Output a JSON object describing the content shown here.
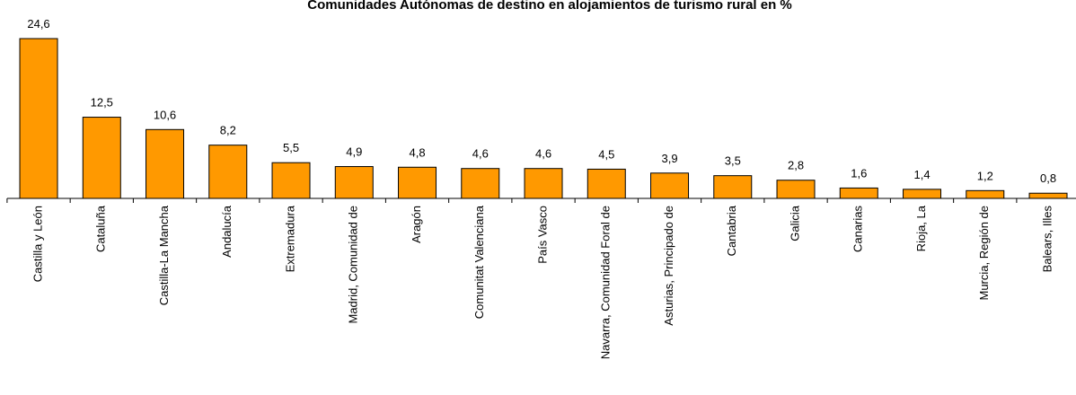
{
  "chart_data": {
    "type": "bar",
    "title": "Comunidades Autónomas de destino en alojamientos de turismo rural en %",
    "categories": [
      "Castilla y León",
      "Cataluña",
      "Castilla-La Mancha",
      "Andalucía",
      "Extremadura",
      "Madrid, Comunidad de",
      "Aragón",
      "Comunitat Valenciana",
      "País Vasco",
      "Navarra, Comunidad Foral de",
      "Asturias, Principado de",
      "Cantabria",
      "Galicia",
      "Canarias",
      "Rioja, La",
      "Murcia, Región de",
      "Balears, Illes"
    ],
    "values": [
      24.6,
      12.5,
      10.6,
      8.2,
      5.5,
      4.9,
      4.8,
      4.6,
      4.6,
      4.5,
      3.9,
      3.5,
      2.8,
      1.6,
      1.4,
      1.2,
      0.8
    ],
    "value_labels": [
      "24,6",
      "12,5",
      "10,6",
      "8,2",
      "5,5",
      "4,9",
      "4,8",
      "4,6",
      "4,6",
      "4,5",
      "3,9",
      "3,5",
      "2,8",
      "1,6",
      "1,4",
      "1,2",
      "0,8"
    ],
    "color": "#ff9900"
  }
}
